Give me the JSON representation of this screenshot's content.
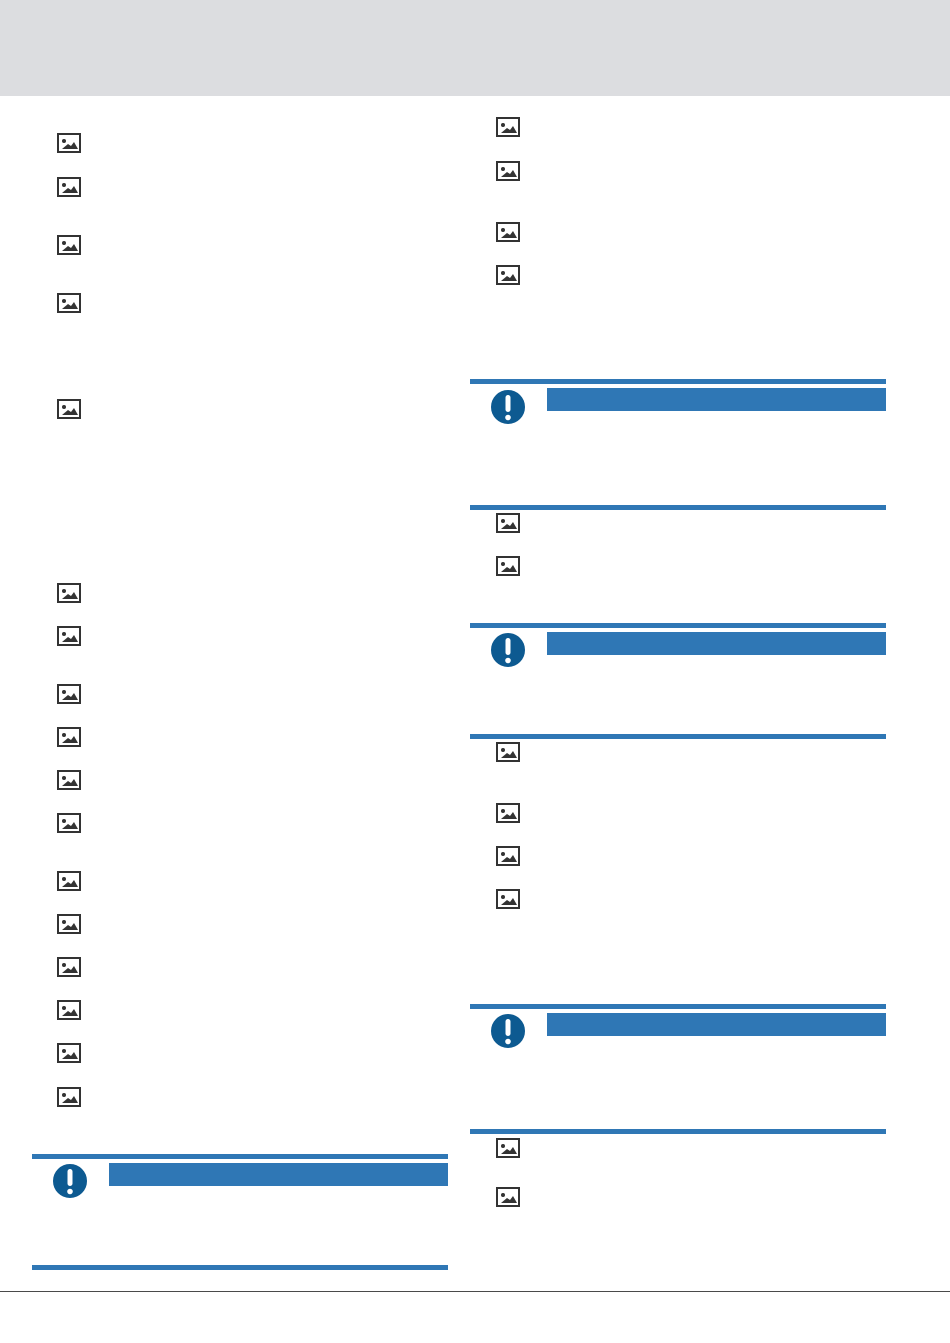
{
  "page": {
    "header_color": "#dcdde0",
    "accent_color": "#2f77b5",
    "notice_icon_color": "#0d5a91",
    "icon_names": {
      "list_item": "image-placeholder-icon",
      "notice": "exclamation-mark-icon"
    },
    "left_column": {
      "list_groups": [
        {
          "item_count": 5
        },
        {
          "item_count": 12
        }
      ],
      "notices": [
        {
          "label": ""
        }
      ]
    },
    "right_column": {
      "list_groups": [
        {
          "item_count": 4
        },
        {
          "item_count": 2
        },
        {
          "item_count": 4
        },
        {
          "item_count": 2
        }
      ],
      "notices": [
        {
          "label": ""
        },
        {
          "label": ""
        },
        {
          "label": ""
        }
      ]
    }
  }
}
